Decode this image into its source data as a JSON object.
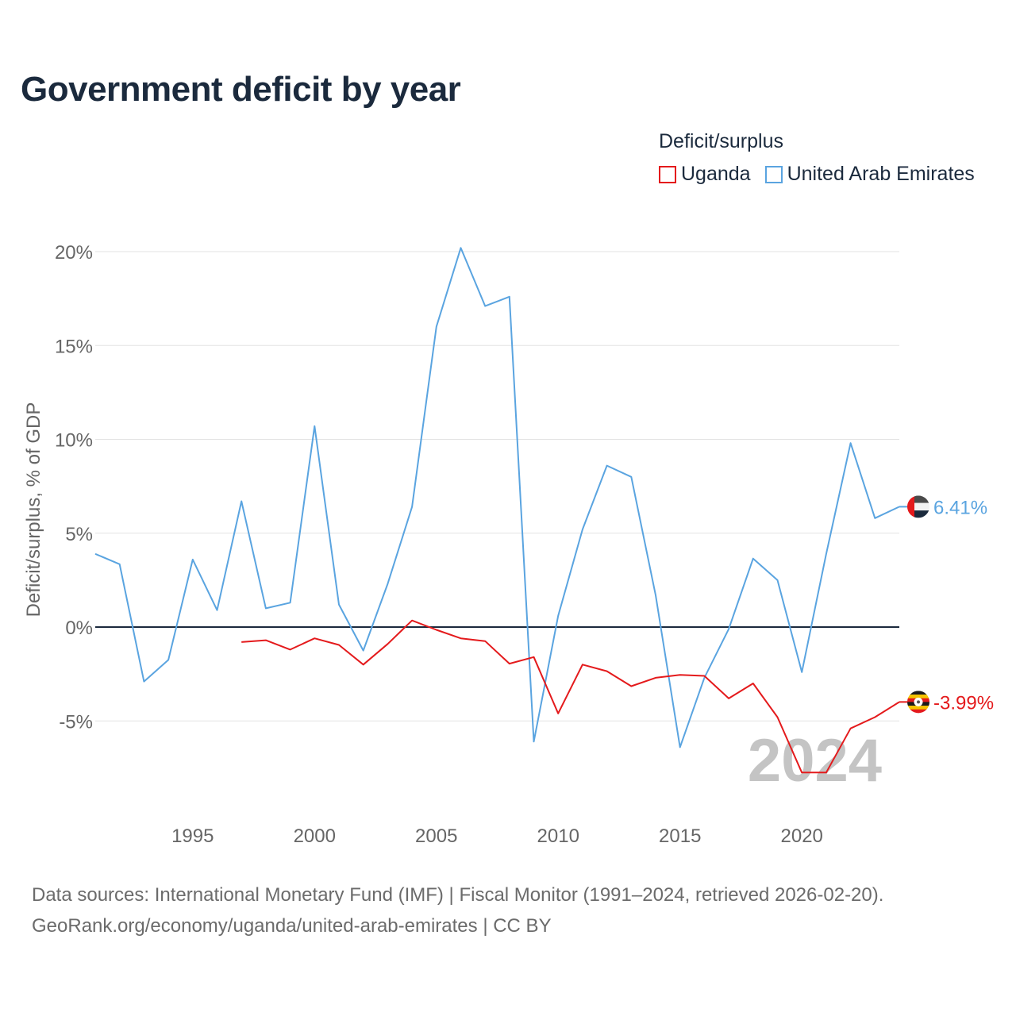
{
  "title": "Government deficit by year",
  "legend": {
    "title": "Deficit/surplus",
    "items": [
      {
        "label": "Uganda",
        "color": "#e41a1c"
      },
      {
        "label": "United Arab Emirates",
        "color": "#5aa4e0"
      }
    ]
  },
  "footer": {
    "line1": "Data sources: International Monetary Fund (IMF) | Fiscal Monitor (1991–2024, retrieved 2026-02-20).",
    "line2": "GeoRank.org/economy/uganda/united-arab-emirates | CC BY"
  },
  "chart_data": {
    "type": "line",
    "title": "Government deficit by year",
    "ylabel": "Deficit/surplus, % of GDP",
    "xlabel": "",
    "ylim": [
      -9.4,
      20.5
    ],
    "xlim": [
      1991,
      2024
    ],
    "yticks": [
      -5,
      0,
      5,
      10,
      15,
      20
    ],
    "ytick_labels": [
      "-5%",
      "0%",
      "5%",
      "10%",
      "15%",
      "20%"
    ],
    "xticks": [
      1995,
      2000,
      2005,
      2010,
      2015,
      2020
    ],
    "xtick_labels": [
      "1995",
      "2000",
      "2005",
      "2010",
      "2015",
      "2020"
    ],
    "watermark_year": "2024",
    "series": [
      {
        "name": "United Arab Emirates",
        "color": "#5aa4e0",
        "end_label": "6.41%",
        "x": [
          1991,
          1992,
          1993,
          1994,
          1995,
          1996,
          1997,
          1998,
          1999,
          2000,
          2001,
          2002,
          2003,
          2004,
          2005,
          2006,
          2007,
          2008,
          2009,
          2010,
          2011,
          2012,
          2013,
          2014,
          2015,
          2016,
          2017,
          2018,
          2019,
          2020,
          2021,
          2022,
          2023,
          2024
        ],
        "values": [
          3.9,
          3.35,
          -2.9,
          -1.75,
          3.6,
          0.9,
          6.7,
          1.0,
          1.3,
          10.7,
          1.2,
          -1.25,
          2.3,
          6.4,
          16.0,
          20.2,
          17.1,
          17.6,
          -6.1,
          0.6,
          5.2,
          8.6,
          8.0,
          1.7,
          -6.4,
          -2.7,
          -0.1,
          3.65,
          2.5,
          -2.4,
          3.9,
          9.8,
          5.8,
          6.41
        ]
      },
      {
        "name": "Uganda",
        "color": "#e41a1c",
        "end_label": "-3.99%",
        "x": [
          1997,
          1998,
          1999,
          2000,
          2001,
          2002,
          2003,
          2004,
          2005,
          2006,
          2007,
          2008,
          2009,
          2010,
          2011,
          2012,
          2013,
          2014,
          2015,
          2016,
          2017,
          2018,
          2019,
          2020,
          2021,
          2022,
          2023,
          2024
        ],
        "values": [
          -0.8,
          -0.7,
          -1.2,
          -0.6,
          -0.95,
          -2.0,
          -0.9,
          0.35,
          -0.15,
          -0.6,
          -0.75,
          -1.95,
          -1.6,
          -4.6,
          -2.0,
          -2.35,
          -3.15,
          -2.7,
          -2.55,
          -2.6,
          -3.8,
          -3.0,
          -4.8,
          -7.75,
          -7.75,
          -5.4,
          -4.8,
          -3.99
        ]
      }
    ]
  }
}
